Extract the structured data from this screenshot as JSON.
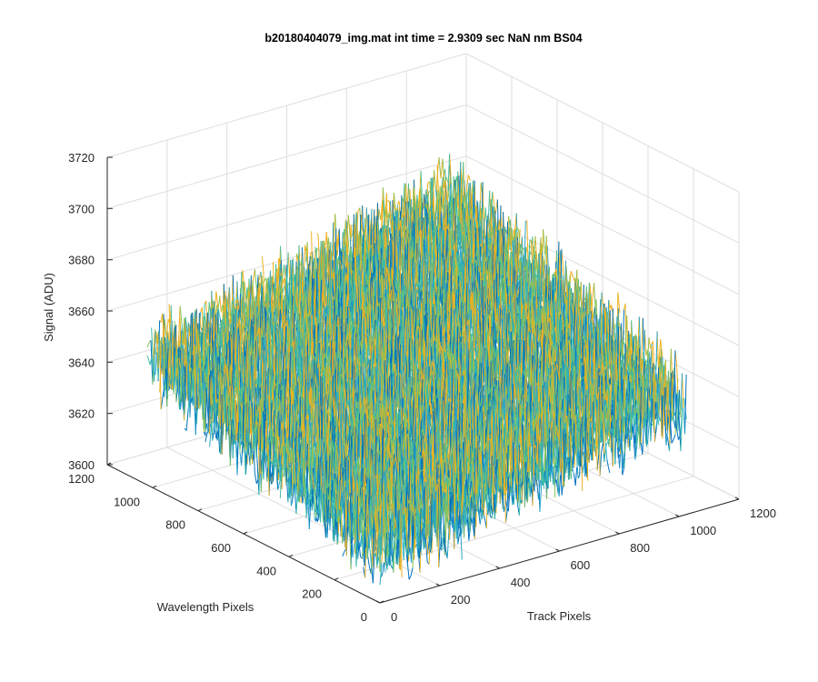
{
  "figure": {
    "title": "b20180404079_img.mat int time = 2.9309 sec  NaN nm BS04"
  },
  "chart_data": {
    "type": "surface",
    "title": "b20180404079_img.mat int time = 2.9309 sec  NaN nm BS04",
    "xlabel": "Track Pixels",
    "ylabel": "Wavelength Pixels",
    "zlabel": "Signal (ADU)",
    "xlim": [
      0,
      1200
    ],
    "ylim": [
      0,
      1200
    ],
    "zlim": [
      3600,
      3720
    ],
    "xticks": [
      0,
      200,
      400,
      600,
      800,
      1000,
      1200
    ],
    "yticks": [
      0,
      200,
      400,
      600,
      800,
      1000,
      1200
    ],
    "zticks": [
      3600,
      3620,
      3640,
      3660,
      3680,
      3700,
      3720
    ],
    "grid": true,
    "surface": {
      "x_range": [
        0,
        1024
      ],
      "y_range": [
        0,
        1024
      ],
      "baseline_front_corner": 3620,
      "baseline_back_corner": 3680,
      "baseline_left_corner": 3650,
      "baseline_right_corner": 3645,
      "noise_amplitude": 14,
      "colormap": [
        "#0072BD",
        "#2BA6C9",
        "#3CBFA6",
        "#86C35A",
        "#EDB120"
      ]
    }
  }
}
